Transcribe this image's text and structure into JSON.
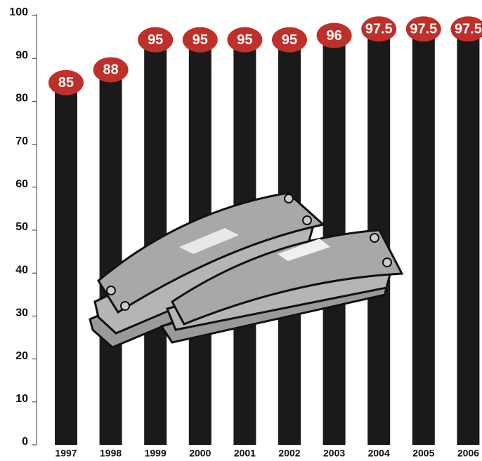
{
  "chart_data": {
    "type": "bar",
    "categories": [
      "1997",
      "1998",
      "1999",
      "2000",
      "2001",
      "2002",
      "2003",
      "2004",
      "2005",
      "2006"
    ],
    "values": [
      85,
      88,
      95,
      95,
      95,
      95,
      96,
      97.5,
      97.5,
      97.5
    ],
    "color": "#1a1a1a",
    "label_color": "#c0302a",
    "ylim": [
      0,
      100
    ],
    "yticks": [
      0,
      10,
      20,
      30,
      40,
      50,
      60,
      70,
      80,
      90,
      100
    ]
  }
}
